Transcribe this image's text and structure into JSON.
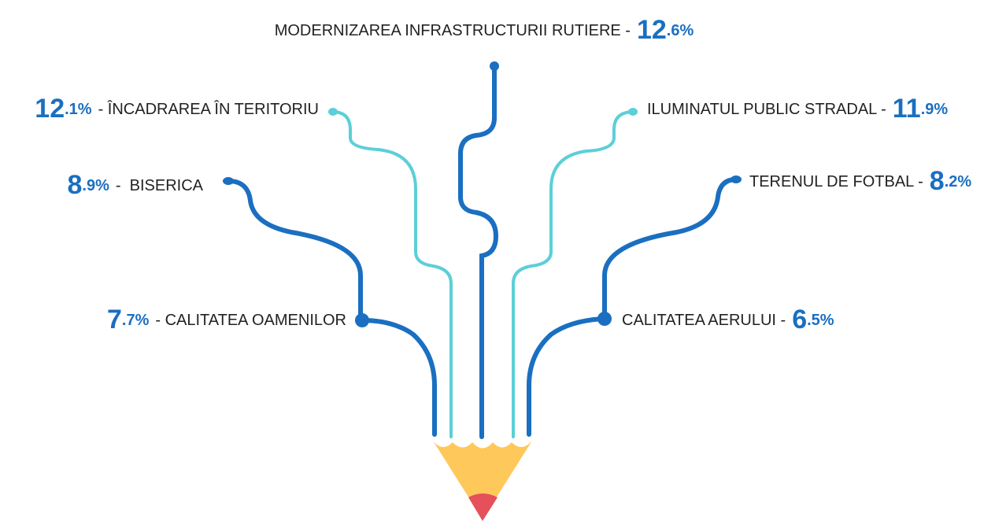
{
  "items": [
    {
      "label": "MODERNIZAREA INFRASTRUCTURII RUTIERE -",
      "value_label": "12.6%"
    },
    {
      "value_label": "12.1%",
      "label": "- ÎNCADRAREA ÎN TERITORIU"
    },
    {
      "label": "ILUMINATUL PUBLIC STRADAL -",
      "value_label": "11.9%"
    },
    {
      "value_label": "8.9%",
      "label": "-  BISERICA"
    },
    {
      "label": "TERENUL DE FOTBAL -",
      "value_label": "8.2%"
    },
    {
      "value_label": "7.7%",
      "label": "- CALITATEA OAMENILOR"
    },
    {
      "label": "CALITATEA AERULUI -",
      "value_label": "6.5%"
    }
  ]
}
